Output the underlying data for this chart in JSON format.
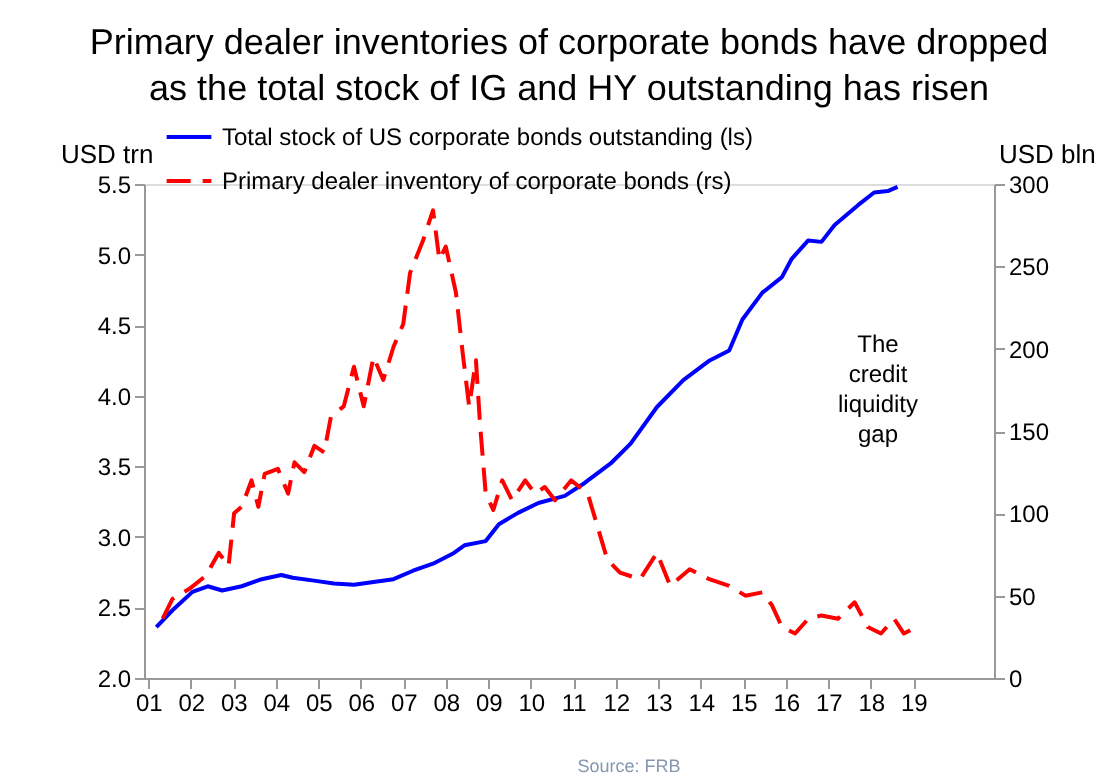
{
  "chart_data": {
    "type": "line",
    "title": "Primary dealer inventories of corporate bonds have dropped as the total stock of IG and HY outstanding has risen",
    "ylabel": "USD trn",
    "y2label": "USD bln",
    "xlim": [
      2000.9,
      2020.9
    ],
    "xticks": [
      {
        "value": 2001,
        "label": "01"
      },
      {
        "value": 2002,
        "label": "02"
      },
      {
        "value": 2003,
        "label": "03"
      },
      {
        "value": 2004,
        "label": "04"
      },
      {
        "value": 2005,
        "label": "05"
      },
      {
        "value": 2006,
        "label": "06"
      },
      {
        "value": 2007,
        "label": "07"
      },
      {
        "value": 2008,
        "label": "08"
      },
      {
        "value": 2009,
        "label": "09"
      },
      {
        "value": 2010,
        "label": "10"
      },
      {
        "value": 2011,
        "label": "11"
      },
      {
        "value": 2012,
        "label": "12"
      },
      {
        "value": 2013,
        "label": "13"
      },
      {
        "value": 2014,
        "label": "14"
      },
      {
        "value": 2015,
        "label": "15"
      },
      {
        "value": 2016,
        "label": "16"
      },
      {
        "value": 2017,
        "label": "17"
      },
      {
        "value": 2018,
        "label": "18"
      },
      {
        "value": 2019,
        "label": "19"
      }
    ],
    "ylim": [
      2.0,
      5.5
    ],
    "yticks": [
      {
        "value": 2,
        "label": "2.0"
      },
      2.5,
      {
        "value": 3,
        "label": "3.0"
      },
      3.5,
      {
        "value": 4,
        "label": "4.0"
      },
      4.5,
      {
        "value": 5,
        "label": "5.0"
      },
      5.5
    ],
    "y2lim": [
      0,
      300
    ],
    "y2ticks": [
      0,
      50,
      100,
      150,
      200,
      250,
      300
    ],
    "grid": false,
    "legend": "top left",
    "annotations": [
      "The credit liquidity gap",
      "Source: FRB"
    ],
    "series": [
      {
        "name": "Total stock of US corporate bonds outstanding (ls)",
        "color": "#0000ff",
        "line_style": "solid",
        "x": [
          2001.19,
          2001.57,
          2002.04,
          2002.4,
          2002.74,
          2003.2,
          2003.67,
          2004.13,
          2004.4,
          2004.9,
          2005.37,
          2005.84,
          2006.3,
          2006.77,
          2007.23,
          2007.7,
          2008.16,
          2008.44,
          2008.94,
          2009.25,
          2009.7,
          2010.18,
          2010.8,
          2011.26,
          2011.88,
          2012.35,
          2012.97,
          2013.59,
          2014.21,
          2014.67,
          2014.98,
          2015.45,
          2015.91,
          2016.14,
          2016.53,
          2016.84,
          2017.15,
          2017.7,
          2018.08,
          2018.4,
          2018.63
        ],
        "values": [
          2.36,
          2.48,
          2.61,
          2.65,
          2.62,
          2.65,
          2.7,
          2.73,
          2.71,
          2.69,
          2.67,
          2.66,
          2.68,
          2.7,
          2.76,
          2.81,
          2.88,
          2.94,
          2.97,
          3.09,
          3.17,
          3.24,
          3.29,
          3.38,
          3.52,
          3.66,
          3.92,
          4.11,
          4.25,
          4.32,
          4.54,
          4.73,
          4.84,
          4.97,
          5.1,
          5.09,
          5.21,
          5.35,
          5.44,
          5.45,
          5.48
        ]
      },
      {
        "name": "Primary dealer inventory of corporate bonds (rs)",
        "color": "#ff0000",
        "line_style": "dashed",
        "axis": "y2",
        "x": [
          2001.34,
          2001.57,
          2001.96,
          2002.35,
          2002.66,
          2002.89,
          2003.02,
          2003.2,
          2003.43,
          2003.59,
          2003.74,
          2004.05,
          2004.29,
          2004.44,
          2004.67,
          2004.91,
          2005.14,
          2005.3,
          2005.6,
          2005.84,
          2006.07,
          2006.3,
          2006.53,
          2006.77,
          2007.0,
          2007.16,
          2007.47,
          2007.7,
          2007.85,
          2008.0,
          2008.24,
          2008.4,
          2008.55,
          2008.71,
          2008.81,
          2008.94,
          2009.12,
          2009.33,
          2009.56,
          2009.87,
          2010.1,
          2010.33,
          2010.57,
          2010.95,
          2011.34,
          2011.8,
          2012.1,
          2012.57,
          2012.97,
          2013.28,
          2013.74,
          2014.2,
          2014.67,
          2015.05,
          2015.45,
          2015.68,
          2015.91,
          2016.22,
          2016.53,
          2016.84,
          2017.23,
          2017.62,
          2017.93,
          2018.24,
          2018.55,
          2018.78,
          2018.93
        ],
        "values": [
          36,
          48,
          54,
          62,
          76,
          68,
          100,
          104,
          120,
          104,
          124,
          127,
          112,
          131,
          125,
          141,
          137,
          159,
          165,
          189,
          165,
          195,
          181,
          201,
          215,
          246,
          266,
          284,
          254,
          262,
          234,
          197,
          165,
          193,
          153,
          112,
          102,
          120,
          108,
          120,
          112,
          116,
          108,
          120,
          112,
          72,
          64,
          60,
          76,
          56,
          66,
          60,
          56,
          50,
          52,
          44,
          31,
          27,
          36,
          38,
          36,
          46,
          31,
          27,
          36,
          27,
          29
        ]
      }
    ]
  }
}
